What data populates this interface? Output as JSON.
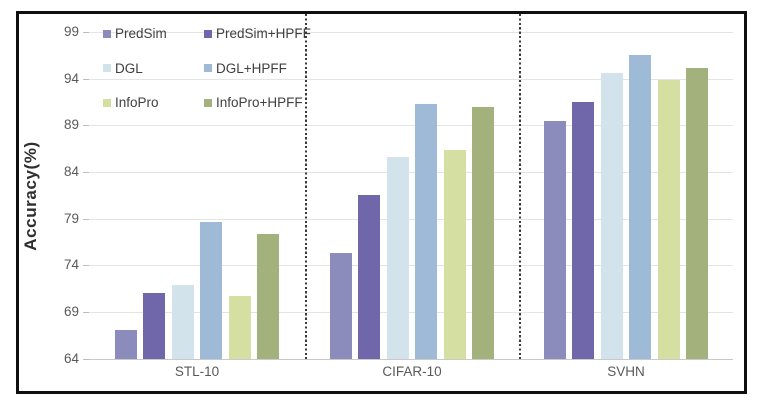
{
  "chart_data": {
    "type": "bar",
    "title": "",
    "ylabel": "Accuracy(%)",
    "xlabel": "",
    "ylim": [
      64,
      99
    ],
    "yticks": [
      64,
      69,
      74,
      79,
      84,
      89,
      94,
      99
    ],
    "categories": [
      "STL-10",
      "CIFAR-10",
      "SVHN"
    ],
    "series": [
      {
        "name": "PredSim",
        "color": "#8b8cbb",
        "values": [
          67.1,
          75.3,
          89.5
        ]
      },
      {
        "name": "PredSim+HPFF",
        "color": "#7067ab",
        "values": [
          71.0,
          81.5,
          91.5
        ]
      },
      {
        "name": "DGL",
        "color": "#d2e3ec",
        "values": [
          71.9,
          85.6,
          94.6
        ]
      },
      {
        "name": "DGL+HPFF",
        "color": "#9fbad6",
        "values": [
          78.6,
          91.3,
          96.5
        ]
      },
      {
        "name": "InfoPro",
        "color": "#d4dfa1",
        "values": [
          70.7,
          86.4,
          93.9
        ]
      },
      {
        "name": "InfoPro+HPFF",
        "color": "#a3b17c",
        "values": [
          77.3,
          91.0,
          95.1
        ]
      }
    ],
    "legend": {
      "position": "top-left",
      "columns": 2
    },
    "grid": true,
    "group_separators": "dotted-vertical-between-categories",
    "frame_border_color": "#0f0f0f"
  }
}
